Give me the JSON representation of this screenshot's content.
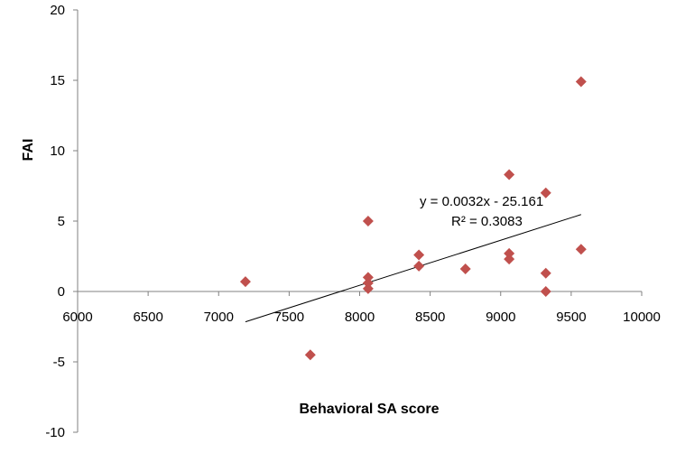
{
  "chart_data": {
    "type": "scatter",
    "xlabel": "Behavioral SA score",
    "ylabel": "FAI",
    "xlim": [
      6000,
      10000
    ],
    "ylim": [
      -10,
      20
    ],
    "x_ticks": [
      "6000",
      "6500",
      "7000",
      "7500",
      "8000",
      "8500",
      "9000",
      "9500",
      "10000"
    ],
    "y_ticks": [
      "20",
      "15",
      "10",
      "5",
      "0",
      "-5",
      "-10"
    ],
    "grid": false,
    "marker_color": "#C0504D",
    "points": [
      {
        "x": 7190,
        "y": 0.7
      },
      {
        "x": 7650,
        "y": -4.5
      },
      {
        "x": 8060,
        "y": 5.0
      },
      {
        "x": 8060,
        "y": 1.0
      },
      {
        "x": 8060,
        "y": 0.6
      },
      {
        "x": 8060,
        "y": 0.2
      },
      {
        "x": 8420,
        "y": 2.6
      },
      {
        "x": 8420,
        "y": 1.8
      },
      {
        "x": 8750,
        "y": 1.6
      },
      {
        "x": 9060,
        "y": 8.3
      },
      {
        "x": 9060,
        "y": 2.7
      },
      {
        "x": 9060,
        "y": 2.3
      },
      {
        "x": 9320,
        "y": 7.0
      },
      {
        "x": 9320,
        "y": 1.3
      },
      {
        "x": 9320,
        "y": 0.0
      },
      {
        "x": 9570,
        "y": 14.9
      },
      {
        "x": 9570,
        "y": 3.0
      }
    ],
    "trendline": {
      "slope": 0.0032,
      "intercept": -25.161,
      "x_range": [
        7190,
        9570
      ],
      "equation_label": "y = 0.0032x - 25.161",
      "r2_label": "R² = 0.3083"
    }
  }
}
